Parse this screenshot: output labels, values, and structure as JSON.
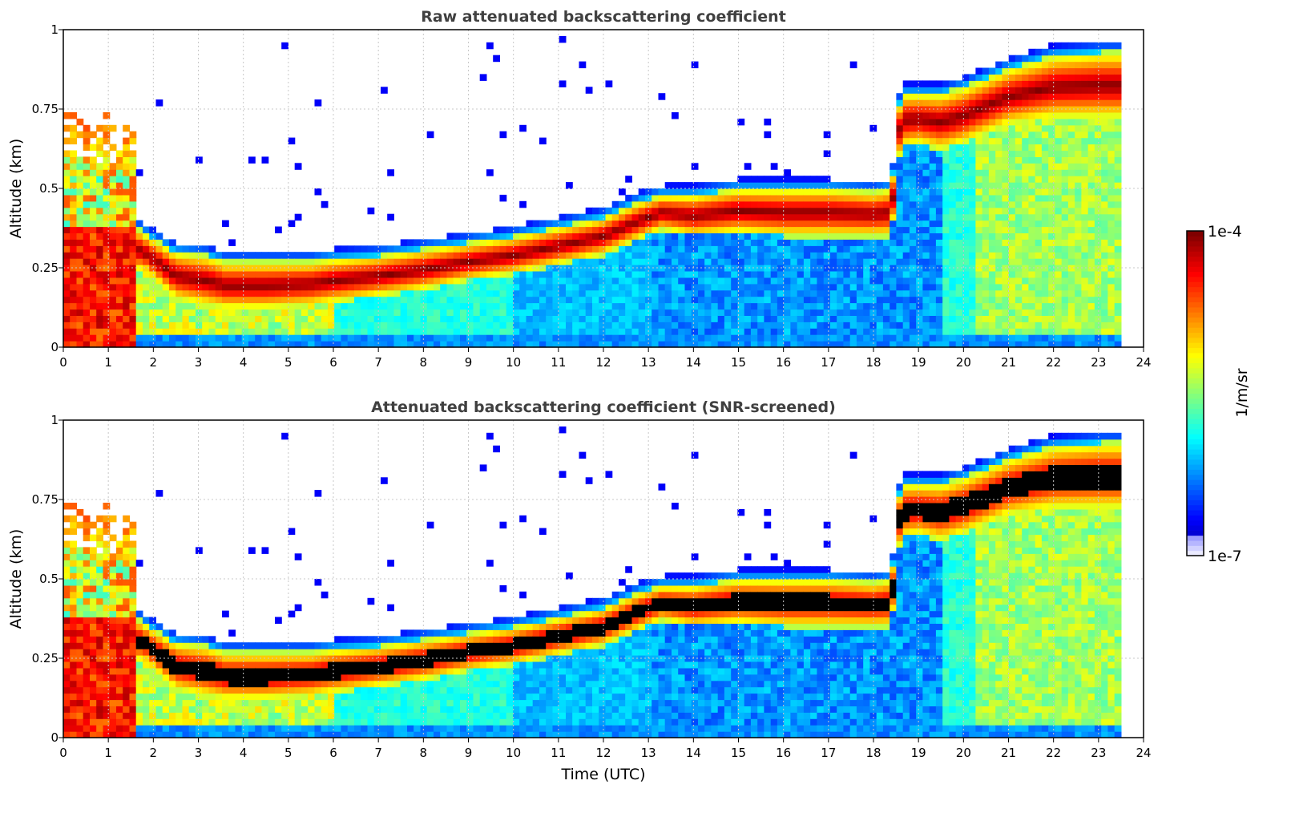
{
  "chart_data": [
    {
      "type": "heatmap",
      "title": "Raw attenuated backscattering coefficient",
      "xlabel": "",
      "ylabel": "Altitude (km)",
      "xlim": [
        0,
        24
      ],
      "ylim": [
        0,
        1
      ],
      "x_ticks": [
        "0",
        "1",
        "2",
        "3",
        "4",
        "5",
        "6",
        "7",
        "8",
        "9",
        "10",
        "11",
        "12",
        "13",
        "14",
        "15",
        "16",
        "17",
        "18",
        "19",
        "20",
        "21",
        "22",
        "23",
        "24"
      ],
      "y_ticks": [
        "0",
        "0.25",
        "0.5",
        "0.75",
        "1"
      ],
      "grid": true,
      "screened": false,
      "data_end_hour": 23.5,
      "layer_profile": {
        "hours": [
          0,
          0.5,
          1,
          1.6,
          1.8,
          2.5,
          3.2,
          3.6,
          4.5,
          5.5,
          6,
          7,
          8,
          9,
          10,
          11,
          12,
          12.8,
          13.3,
          14,
          15,
          16,
          17,
          18,
          18.4,
          18.6,
          19,
          19.5,
          20,
          21,
          22,
          23,
          23.5
        ],
        "cloud_base_km": [
          0.25,
          0.25,
          0.25,
          0.24,
          0.24,
          0.15,
          0.13,
          0.12,
          0.12,
          0.13,
          0.14,
          0.16,
          0.18,
          0.21,
          0.23,
          0.26,
          0.29,
          0.34,
          0.37,
          0.35,
          0.36,
          0.35,
          0.35,
          0.35,
          0.35,
          0.63,
          0.64,
          0.62,
          0.64,
          0.7,
          0.72,
          0.72,
          0.72
        ],
        "cloud_top_km": [
          0.4,
          0.4,
          0.4,
          0.38,
          0.36,
          0.3,
          0.29,
          0.27,
          0.27,
          0.27,
          0.28,
          0.29,
          0.31,
          0.33,
          0.35,
          0.38,
          0.41,
          0.46,
          0.48,
          0.48,
          0.5,
          0.5,
          0.5,
          0.49,
          0.5,
          0.8,
          0.8,
          0.8,
          0.82,
          0.88,
          0.92,
          0.93,
          0.93
        ]
      }
    },
    {
      "type": "heatmap",
      "title": "Attenuated backscattering coefficient (SNR-screened)",
      "xlabel": "Time (UTC)",
      "ylabel": "Altitude (km)",
      "xlim": [
        0,
        24
      ],
      "ylim": [
        0,
        1
      ],
      "x_ticks": [
        "0",
        "1",
        "2",
        "3",
        "4",
        "5",
        "6",
        "7",
        "8",
        "9",
        "10",
        "11",
        "12",
        "13",
        "14",
        "15",
        "16",
        "17",
        "18",
        "19",
        "20",
        "21",
        "22",
        "23",
        "24"
      ],
      "y_ticks": [
        "0",
        "0.25",
        "0.5",
        "0.75",
        "1"
      ],
      "grid": true,
      "screened": true,
      "data_end_hour": 23.5
    }
  ],
  "colorbar": {
    "label": "1/m/sr",
    "max_label": "1e-4",
    "min_label": "1e-7",
    "colormap": "jet",
    "scale": "log",
    "range": [
      1e-07,
      0.0001
    ]
  }
}
